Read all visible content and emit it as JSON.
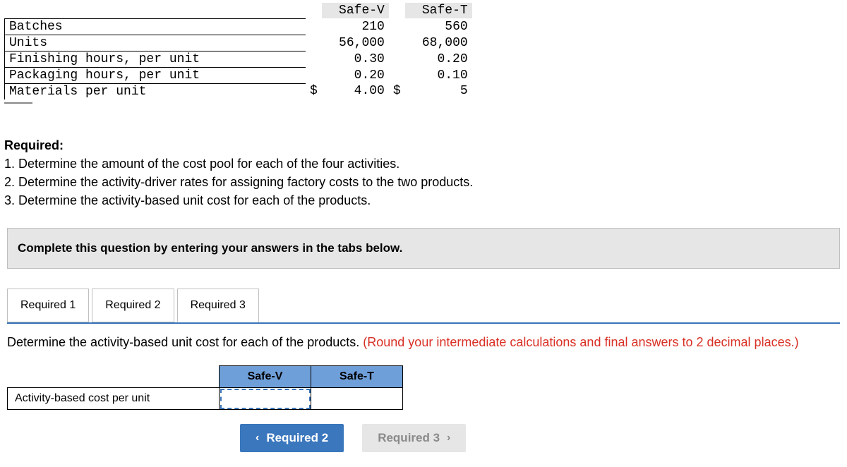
{
  "data_table": {
    "headers": [
      "Safe-V",
      "Safe-T"
    ],
    "rows": [
      {
        "label": "Batches",
        "v1": "210",
        "v2": "560"
      },
      {
        "label": "Units",
        "v1": "56,000",
        "v2": "68,000"
      },
      {
        "label": "Finishing hours, per unit",
        "v1": "0.30",
        "v2": "0.20"
      },
      {
        "label": "Packaging hours, per unit",
        "v1": "0.20",
        "v2": "0.10"
      },
      {
        "label": "Materials per unit",
        "c1": "$",
        "v1": "4.00",
        "c2": "$",
        "v2": "5"
      }
    ]
  },
  "required": {
    "heading": "Required:",
    "items": [
      "1. Determine the amount of the cost pool for each of the four activities.",
      "2. Determine the activity-driver rates for assigning factory costs to the two products.",
      "3. Determine the activity-based unit cost for each of the products."
    ]
  },
  "instruction": "Complete this question by entering your answers in the tabs below.",
  "tabs": {
    "items": [
      "Required 1",
      "Required 2",
      "Required 3"
    ],
    "active_index": 2
  },
  "tab_content": {
    "prompt_main": "Determine the activity-based unit cost for each of the products. ",
    "prompt_hint": "(Round your intermediate calculations and final answers to 2 decimal places.)"
  },
  "answer_table": {
    "headers": [
      "Safe-V",
      "Safe-T"
    ],
    "row_label": "Activity-based cost per unit"
  },
  "nav": {
    "prev_icon": "‹",
    "prev_label": "Required 2",
    "next_label": "Required 3",
    "next_icon": "›"
  }
}
